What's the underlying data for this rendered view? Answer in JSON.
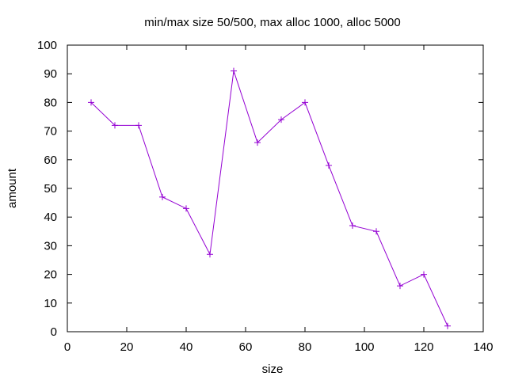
{
  "chart_data": {
    "type": "line",
    "title": "min/max size 50/500, max alloc 1000, alloc 5000",
    "xlabel": "size",
    "ylabel": "amount",
    "xlim": [
      0,
      140
    ],
    "ylim": [
      0,
      100
    ],
    "xticks": [
      0,
      20,
      40,
      60,
      80,
      100,
      120,
      140
    ],
    "yticks": [
      0,
      10,
      20,
      30,
      40,
      50,
      60,
      70,
      80,
      90,
      100
    ],
    "grid": false,
    "legend": "none",
    "marker": "plus",
    "color": "#9400d3",
    "series": [
      {
        "x": [
          8,
          16,
          24,
          32,
          40,
          48,
          56,
          64,
          72,
          80,
          88,
          96,
          104,
          112,
          120,
          128
        ],
        "y": [
          80,
          72,
          72,
          47,
          43,
          27,
          91,
          66,
          74,
          80,
          58,
          37,
          35,
          16,
          20,
          2
        ]
      }
    ]
  }
}
